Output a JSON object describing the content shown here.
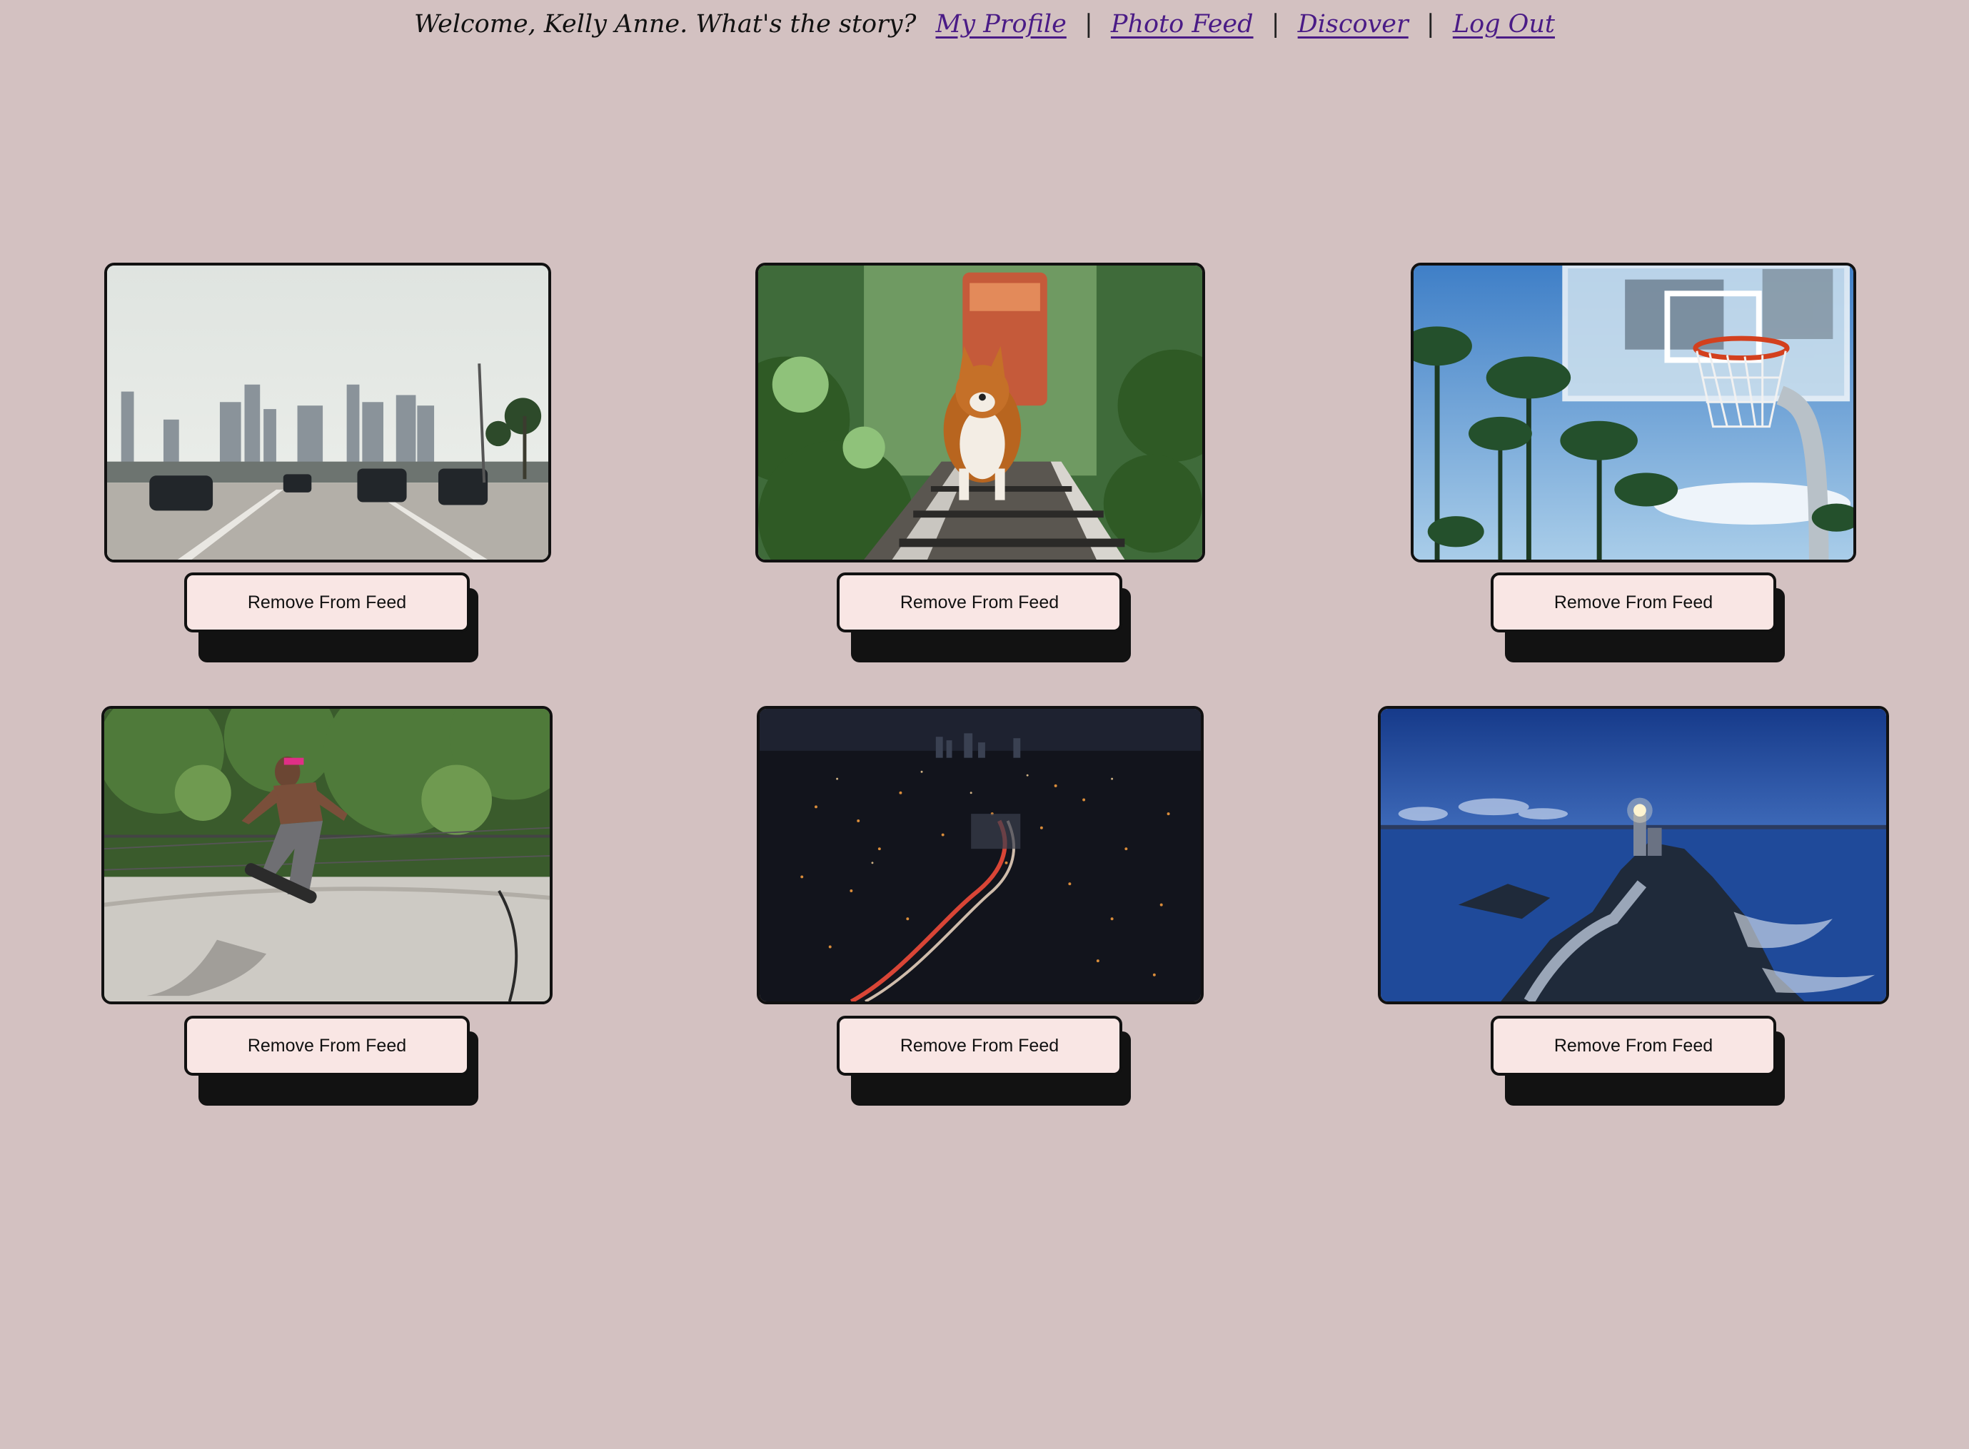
{
  "header": {
    "welcome": "Welcome, Kelly Anne. What's the story?",
    "links": {
      "my_profile": "My Profile",
      "photo_feed": "Photo Feed",
      "discover": "Discover",
      "log_out": "Log Out"
    },
    "separator": "|"
  },
  "colors": {
    "background": "#d3c1c1",
    "link": "#4a1b86",
    "button_bg": "#f9e6e4",
    "button_shadow": "#121212"
  },
  "feed": {
    "remove_label": "Remove From Feed",
    "photos": [
      {
        "subject": "city-highway-skyline"
      },
      {
        "subject": "corgi-on-train-tracks"
      },
      {
        "subject": "basketball-hoop-palm-trees"
      },
      {
        "subject": "skateboarder-in-bowl"
      },
      {
        "subject": "city-at-night-light-trails"
      },
      {
        "subject": "lighthouse-blue-hour"
      }
    ]
  }
}
